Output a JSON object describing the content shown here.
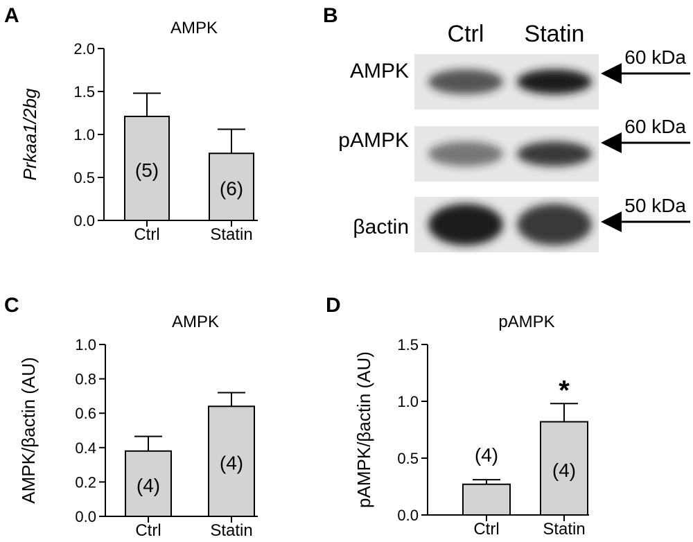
{
  "panels": {
    "a": {
      "letter": "A"
    },
    "b": {
      "letter": "B"
    },
    "c": {
      "letter": "C"
    },
    "d": {
      "letter": "D"
    }
  },
  "blot": {
    "columns": [
      "Ctrl",
      "Statin"
    ],
    "rows": [
      {
        "label": "AMPK",
        "size": "60 kDa",
        "band_intensity": [
          0.72,
          1.0
        ]
      },
      {
        "label": "pAMPK",
        "size": "60 kDa",
        "band_intensity": [
          0.55,
          0.85
        ]
      },
      {
        "label": "βactin",
        "size": "50 kDa",
        "band_intensity": [
          1.0,
          0.85
        ]
      }
    ]
  },
  "colors": {
    "bar_fill": "#d3d3d3",
    "stroke": "#000000",
    "blot_bg": "#e6e6e6",
    "band": "#1a1a1a"
  },
  "chart_data": [
    {
      "panel": "A",
      "type": "bar",
      "title": "AMPK",
      "ylabel": "Prkaa1/2bg",
      "ylabel_italic": true,
      "xlabel": "",
      "categories": [
        "Ctrl",
        "Statin"
      ],
      "values": [
        1.21,
        0.78
      ],
      "errors": [
        0.27,
        0.28
      ],
      "n_labels": [
        "(5)",
        "(6)"
      ],
      "ylim": [
        0,
        2.0
      ],
      "yticks": [
        0.0,
        0.5,
        1.0,
        1.5,
        2.0
      ],
      "ytick_labels": [
        "0.0",
        "0.5",
        "1.0",
        "1.5",
        "2.0"
      ],
      "significance": [
        "",
        ""
      ],
      "grid": false
    },
    {
      "panel": "C",
      "type": "bar",
      "title": "AMPK",
      "ylabel": "AMPK/βactin (AU)",
      "ylabel_italic": false,
      "xlabel": "",
      "categories": [
        "Ctrl",
        "Statin"
      ],
      "values": [
        0.38,
        0.64
      ],
      "errors": [
        0.085,
        0.08
      ],
      "n_labels": [
        "(4)",
        "(4)"
      ],
      "ylim": [
        0,
        1.0
      ],
      "yticks": [
        0.0,
        0.2,
        0.4,
        0.6,
        0.8,
        1.0
      ],
      "ytick_labels": [
        "0.0",
        "0.2",
        "0.4",
        "0.6",
        "0.8",
        "1.0"
      ],
      "significance": [
        "",
        ""
      ],
      "grid": false
    },
    {
      "panel": "D",
      "type": "bar",
      "title": "pAMPK",
      "ylabel": "pAMPK/βactin (AU)",
      "ylabel_italic": false,
      "xlabel": "",
      "categories": [
        "Ctrl",
        "Statin"
      ],
      "values": [
        0.27,
        0.82
      ],
      "errors": [
        0.04,
        0.16
      ],
      "n_labels": [
        "(4)",
        "(4)"
      ],
      "ylim": [
        0,
        1.5
      ],
      "yticks": [
        0.0,
        0.5,
        1.0,
        1.5
      ],
      "ytick_labels": [
        "0.0",
        "0.5",
        "1.0",
        "1.5"
      ],
      "significance": [
        "",
        "*"
      ],
      "grid": false
    }
  ]
}
